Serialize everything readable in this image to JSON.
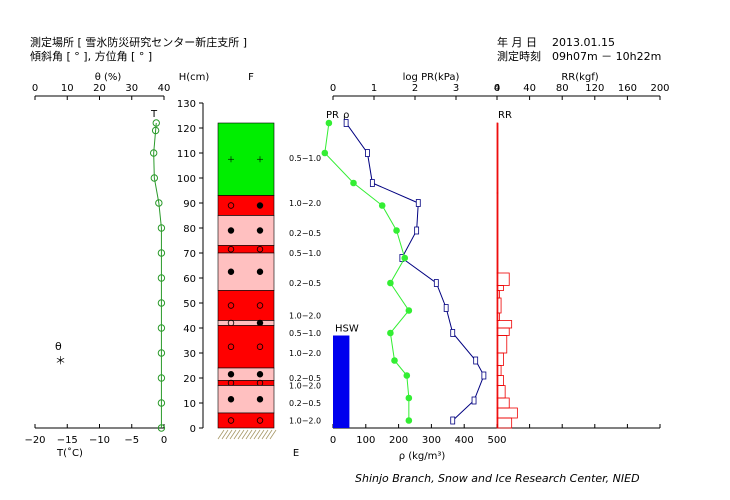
{
  "header": {
    "site_label": "測定場所 [ 雪氷防災研究センター新庄支所 ]",
    "angles_label": "傾斜角 [ ° ], 方位角 [ ° ]",
    "date_label": "年 月 日",
    "date_value": "2013.01.15",
    "time_label": "測定時刻",
    "time_value": "09h07m － 10h22m"
  },
  "footer": {
    "credit": "Shinjo Branch, Snow and Ice Research Center, NIED"
  },
  "chart_data": {
    "type": "snow_pit_profile",
    "height_axis": {
      "label": "H(cm)",
      "range": [
        0,
        130
      ],
      "ticks": [
        0,
        10,
        20,
        30,
        40,
        50,
        60,
        70,
        80,
        90,
        100,
        110,
        120,
        130
      ]
    },
    "temperature": {
      "top_axis_label": "θ (%)",
      "top_ticks": [
        "0",
        "10",
        "20",
        "30",
        "40"
      ],
      "bottom_axis_label": "T(˚C)",
      "bottom_ticks": [
        "−20",
        "−15",
        "−10",
        "−5",
        "0"
      ],
      "range": [
        -20,
        0
      ],
      "curve_label": "T",
      "points": [
        {
          "h": 122,
          "t": -1.2
        },
        {
          "h": 119,
          "t": -1.3
        },
        {
          "h": 110,
          "t": -1.6
        },
        {
          "h": 100,
          "t": -1.5
        },
        {
          "h": 90,
          "t": -0.8
        },
        {
          "h": 80,
          "t": -0.4
        },
        {
          "h": 70,
          "t": -0.4
        },
        {
          "h": 60,
          "t": -0.4
        },
        {
          "h": 50,
          "t": -0.4
        },
        {
          "h": 40,
          "t": -0.4
        },
        {
          "h": 30,
          "t": -0.4
        },
        {
          "h": 20,
          "t": -0.4
        },
        {
          "h": 10,
          "t": -0.4
        },
        {
          "h": 0,
          "t": -0.4
        }
      ],
      "legend": [
        {
          "symbol": "θ"
        },
        {
          "symbol": "＊"
        }
      ]
    },
    "snow_type": {
      "top_label": "F",
      "bottom_label": "E",
      "colors": {
        "green": "#00ee00",
        "red": "#ff0000",
        "pink": "#ffc0c0"
      },
      "layers": [
        {
          "bottom": 93,
          "top": 122,
          "color": "green",
          "symbol": "plus"
        },
        {
          "bottom": 85,
          "top": 93,
          "color": "red",
          "symbol": "open-filled"
        },
        {
          "bottom": 73,
          "top": 85,
          "color": "pink",
          "symbol": "filled"
        },
        {
          "bottom": 70,
          "top": 73,
          "color": "red",
          "symbol": "open"
        },
        {
          "bottom": 55,
          "top": 70,
          "color": "pink",
          "symbol": "filled"
        },
        {
          "bottom": 43,
          "top": 55,
          "color": "red",
          "symbol": "open"
        },
        {
          "bottom": 41,
          "top": 43,
          "color": "pink",
          "symbol": "open-filled"
        },
        {
          "bottom": 24,
          "top": 41,
          "color": "red",
          "symbol": "open"
        },
        {
          "bottom": 19,
          "top": 24,
          "color": "pink",
          "symbol": "filled"
        },
        {
          "bottom": 17,
          "top": 19,
          "color": "red",
          "symbol": "open"
        },
        {
          "bottom": 6,
          "top": 17,
          "color": "pink",
          "symbol": "filled"
        },
        {
          "bottom": 0,
          "top": 6,
          "color": "red",
          "symbol": "open"
        }
      ],
      "grain_size_labels": [
        {
          "h": 108,
          "text": "0.5−1.0"
        },
        {
          "h": 90,
          "text": "1.0−2.0"
        },
        {
          "h": 78,
          "text": "0.2−0.5"
        },
        {
          "h": 70,
          "text": "0.5−1.0"
        },
        {
          "h": 58,
          "text": "0.2−0.5"
        },
        {
          "h": 45,
          "text": "1.0−2.0"
        },
        {
          "h": 38,
          "text": "0.5−1.0"
        },
        {
          "h": 30,
          "text": "1.0−2.0"
        },
        {
          "h": 20,
          "text": "0.2−0.5"
        },
        {
          "h": 17,
          "text": "1.0−2.0"
        },
        {
          "h": 10,
          "text": "0.2−0.5"
        },
        {
          "h": 3,
          "text": "1.0−2.0"
        }
      ]
    },
    "hardness_density": {
      "top_axis_label": "log PR(kPa)",
      "top_ticks": [
        "0",
        "1",
        "2",
        "3",
        "4"
      ],
      "top_range": [
        0,
        4
      ],
      "bottom_axis_label": "ρ (kg/m³)",
      "bottom_ticks": [
        "0",
        "100",
        "200",
        "300",
        "400",
        "500"
      ],
      "bottom_range": [
        0,
        500
      ],
      "pr_label": "PR",
      "rho_label": "ρ",
      "pr_points": [
        {
          "h": 122,
          "v": -0.1
        },
        {
          "h": 110,
          "v": -0.2
        },
        {
          "h": 98,
          "v": 0.5
        },
        {
          "h": 89,
          "v": 1.2
        },
        {
          "h": 79,
          "v": 1.55
        },
        {
          "h": 68,
          "v": 1.75
        },
        {
          "h": 58,
          "v": 1.4
        },
        {
          "h": 47,
          "v": 1.85
        },
        {
          "h": 38,
          "v": 1.4
        },
        {
          "h": 27,
          "v": 1.5
        },
        {
          "h": 21,
          "v": 1.8
        },
        {
          "h": 12,
          "v": 1.85
        },
        {
          "h": 3,
          "v": 1.85
        }
      ],
      "density_points": [
        {
          "h": 122,
          "v": 40
        },
        {
          "h": 110,
          "v": 105
        },
        {
          "h": 98,
          "v": 120
        },
        {
          "h": 90,
          "v": 260
        },
        {
          "h": 79,
          "v": 255
        },
        {
          "h": 68,
          "v": 210
        },
        {
          "h": 58,
          "v": 315
        },
        {
          "h": 48,
          "v": 345
        },
        {
          "h": 38,
          "v": 365
        },
        {
          "h": 27,
          "v": 435
        },
        {
          "h": 21,
          "v": 460
        },
        {
          "h": 11,
          "v": 430
        },
        {
          "h": 3,
          "v": 365
        }
      ],
      "hsw": {
        "label": "HSW",
        "value": 50,
        "height": 37
      }
    },
    "ram_resistance": {
      "top_axis_label": "RR(kgf)",
      "top_ticks": [
        "0",
        "40",
        "80",
        "120",
        "160",
        "200"
      ],
      "range": [
        0,
        200
      ],
      "curve_label": "RR",
      "steps": [
        {
          "bottom": 94,
          "top": 122,
          "v": 1
        },
        {
          "bottom": 62,
          "top": 94,
          "v": 1
        },
        {
          "bottom": 57,
          "top": 62,
          "v": 15
        },
        {
          "bottom": 55,
          "top": 57,
          "v": 8
        },
        {
          "bottom": 52,
          "top": 55,
          "v": 3
        },
        {
          "bottom": 46,
          "top": 52,
          "v": 5
        },
        {
          "bottom": 43,
          "top": 46,
          "v": 3
        },
        {
          "bottom": 40,
          "top": 43,
          "v": 18
        },
        {
          "bottom": 37,
          "top": 40,
          "v": 15
        },
        {
          "bottom": 30,
          "top": 37,
          "v": 12
        },
        {
          "bottom": 25,
          "top": 30,
          "v": 8
        },
        {
          "bottom": 21,
          "top": 25,
          "v": 5
        },
        {
          "bottom": 17,
          "top": 21,
          "v": 8
        },
        {
          "bottom": 12,
          "top": 17,
          "v": 10
        },
        {
          "bottom": 8,
          "top": 12,
          "v": 15
        },
        {
          "bottom": 4,
          "top": 8,
          "v": 25
        },
        {
          "bottom": 0,
          "top": 4,
          "v": 18
        }
      ]
    }
  }
}
